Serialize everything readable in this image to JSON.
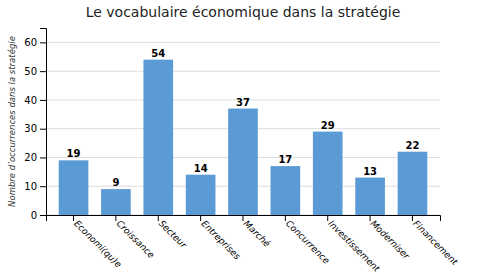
{
  "chart_data": {
    "type": "bar",
    "title": "Le vocabulaire économique dans la stratégie",
    "ylabel": "Nombre d’occurrences dans la stratégie",
    "categories": [
      "Economi(qu)e",
      "Croissance",
      "Secteur",
      "Entreprises",
      "Marché",
      "Concurrence",
      "Investissement",
      "Moderniser",
      "Financement"
    ],
    "values": [
      19,
      9,
      54,
      14,
      37,
      17,
      29,
      13,
      22
    ],
    "color": "#5B9BD5",
    "ylim": [
      0,
      65
    ],
    "yticks": [
      0,
      10,
      20,
      30,
      40,
      50,
      60
    ],
    "grid": true,
    "data_labels": true
  }
}
